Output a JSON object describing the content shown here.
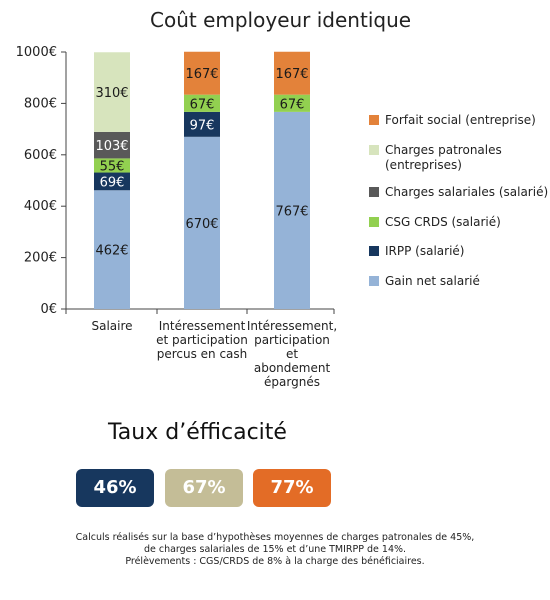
{
  "chart_data": {
    "type": "bar",
    "stacked": true,
    "title": "Coût employeur identique",
    "categories": [
      [
        "Salaire"
      ],
      [
        "Intéressement",
        "et participation",
        "percus en cash"
      ],
      [
        "Intéressement,",
        "participation",
        "et",
        "abondement",
        "épargnés"
      ]
    ],
    "series": [
      {
        "name": "Gain net salarié",
        "color": "#95b3d7",
        "values": [
          462,
          670,
          767
        ],
        "labels": [
          "462€",
          "670€",
          "767€"
        ],
        "label_color": "#1a1a1a"
      },
      {
        "name": "IRPP (salarié)",
        "color": "#17375e",
        "values": [
          69,
          97,
          0
        ],
        "labels": [
          "69€",
          "97€",
          ""
        ],
        "label_color": "#ffffff"
      },
      {
        "name": "CSG CRDS (salarié)",
        "color": "#92d050",
        "values": [
          55,
          67,
          67
        ],
        "labels": [
          "55€",
          "67€",
          "67€"
        ],
        "label_color": "#1a1a1a"
      },
      {
        "name": "Charges salariales (salarié)",
        "color": "#595959",
        "values": [
          103,
          0,
          0
        ],
        "labels": [
          "103€",
          "",
          ""
        ],
        "label_color": "#ffffff"
      },
      {
        "name": "Charges patronales (entreprises)",
        "color": "#d7e4bd",
        "values": [
          310,
          0,
          0
        ],
        "labels": [
          "310€",
          "",
          ""
        ],
        "label_color": "#1a1a1a"
      },
      {
        "name": "Forfait social (entreprise)",
        "color": "#e3823a",
        "values": [
          0,
          167,
          167
        ],
        "labels": [
          "",
          "167€",
          "167€"
        ],
        "label_color": "#1a1a1a"
      }
    ],
    "legend_order": [
      5,
      4,
      3,
      2,
      1,
      0
    ],
    "legend_labels": [
      [
        "Forfait social (entreprise)"
      ],
      [
        "Charges patronales",
        "(entreprises)"
      ],
      [
        "Charges salariales (salarié)"
      ],
      [
        "CSG CRDS (salarié)"
      ],
      [
        "IRPP (salarié)"
      ],
      [
        "Gain net salarié"
      ]
    ],
    "ylim": [
      0,
      1000
    ],
    "yticks": [
      0,
      200,
      400,
      600,
      800,
      1000
    ],
    "ytick_labels": [
      "0€",
      "200€",
      "400€",
      "600€",
      "800€",
      "1000€"
    ],
    "legend_position": "right",
    "grid": false
  },
  "efficiency": {
    "title": "Taux d’éfficacité",
    "badges": [
      {
        "value": "46%",
        "color": "#17375e"
      },
      {
        "value": "67%",
        "color": "#c4bd97"
      },
      {
        "value": "77%",
        "color": "#e36c26"
      }
    ]
  },
  "footnote": {
    "line1": "Calculs réalisés sur la base d’hypothèses moyennes de charges patronales de 45%,",
    "line2": "de charges salariales de 15% et d’une TMIRPP de 14%.",
    "line3": "Prélèvements : CGS/CRDS de 8% à la charge des bénéficiaires."
  }
}
